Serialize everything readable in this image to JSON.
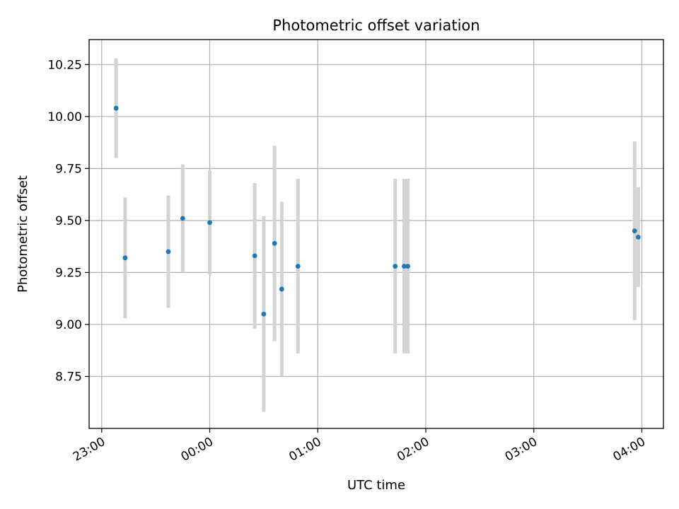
{
  "chart_data": {
    "type": "scatter",
    "title": "Photometric offset variation",
    "xlabel": "UTC time",
    "ylabel": "Photometric offset",
    "x_axis_kind": "time",
    "x_tick_labels": [
      "23:00",
      "00:00",
      "01:00",
      "02:00",
      "03:00",
      "04:00"
    ],
    "y_tick_labels": [
      "8.75",
      "9.00",
      "9.25",
      "9.50",
      "9.75",
      "10.00",
      "10.25"
    ],
    "ylim": [
      8.5,
      10.37
    ],
    "xlim": [
      "22:53",
      "04:12"
    ],
    "grid": true,
    "colors": {
      "marker": "#1f77b4",
      "errorbar": "#d3d3d3",
      "grid": "#b0b0b0"
    },
    "points": [
      {
        "time": "23:08",
        "y": 10.04,
        "yerr": 0.24
      },
      {
        "time": "23:13",
        "y": 9.32,
        "yerr": 0.29
      },
      {
        "time": "23:37",
        "y": 9.35,
        "yerr": 0.27
      },
      {
        "time": "23:45",
        "y": 9.51,
        "yerr": 0.26
      },
      {
        "time": "00:00",
        "y": 9.49,
        "yerr": 0.25
      },
      {
        "time": "00:25",
        "y": 9.33,
        "yerr": 0.35
      },
      {
        "time": "00:30",
        "y": 9.05,
        "yerr": 0.47
      },
      {
        "time": "00:36",
        "y": 9.39,
        "yerr": 0.47
      },
      {
        "time": "00:40",
        "y": 9.17,
        "yerr": 0.42
      },
      {
        "time": "00:49",
        "y": 9.28,
        "yerr": 0.42
      },
      {
        "time": "01:43",
        "y": 9.28,
        "yerr": 0.42
      },
      {
        "time": "01:48",
        "y": 9.28,
        "yerr": 0.42
      },
      {
        "time": "01:50",
        "y": 9.28,
        "yerr": 0.42
      },
      {
        "time": "03:56",
        "y": 9.45,
        "yerr": 0.43
      },
      {
        "time": "03:58",
        "y": 9.42,
        "yerr": 0.24
      }
    ]
  }
}
